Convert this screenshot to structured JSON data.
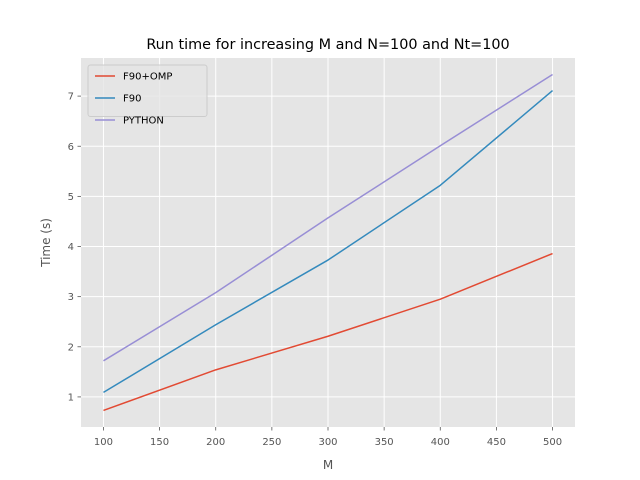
{
  "chart_data": {
    "type": "line",
    "title": "Run time for increasing M and N=100 and Nt=100",
    "xlabel": "M",
    "ylabel": "Time (s)",
    "x": [
      100,
      200,
      300,
      400,
      500
    ],
    "xlim": [
      80,
      520
    ],
    "ylim": [
      0.4,
      7.76
    ],
    "xticks": [
      100,
      150,
      200,
      250,
      300,
      350,
      400,
      450,
      500
    ],
    "yticks": [
      1,
      2,
      3,
      4,
      5,
      6,
      7
    ],
    "grid": true,
    "legend_position": "upper-left",
    "series": [
      {
        "name": "F90+OMP",
        "color": "#E24A33",
        "values": [
          0.73,
          1.54,
          2.21,
          2.95,
          3.86
        ]
      },
      {
        "name": "F90",
        "color": "#348ABD",
        "values": [
          1.09,
          2.44,
          3.73,
          5.22,
          7.11
        ]
      },
      {
        "name": "PYTHON",
        "color": "#988ED5",
        "values": [
          1.72,
          3.08,
          4.57,
          6.01,
          7.43
        ]
      }
    ]
  }
}
